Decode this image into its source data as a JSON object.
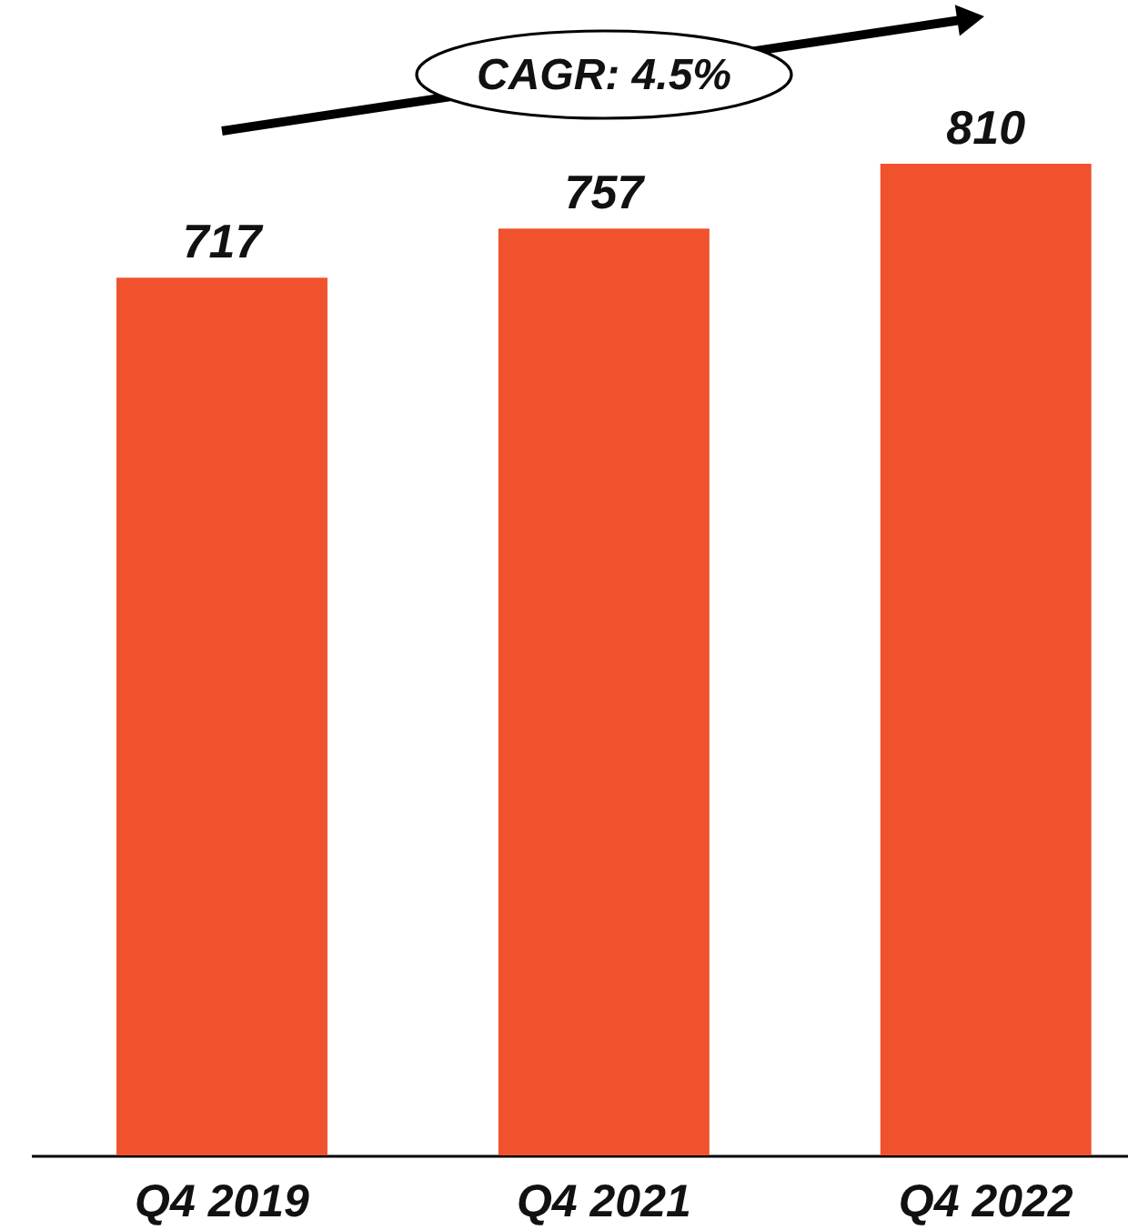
{
  "chart_data": {
    "type": "bar",
    "categories": [
      "Q4 2019",
      "Q4 2021",
      "Q4 2022"
    ],
    "values": [
      717,
      757,
      810
    ],
    "color": "#f0522d",
    "data_labels": true,
    "annotations": [
      "CAGR: 4.5%"
    ]
  }
}
